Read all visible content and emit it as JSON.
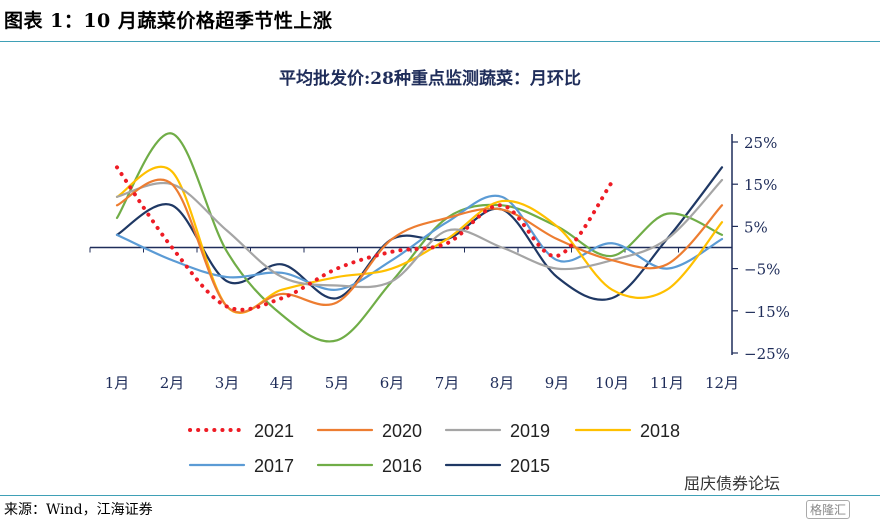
{
  "header": {
    "title": "图表 1：10 月蔬菜价格超季节性上涨"
  },
  "footer": {
    "source": "来源：Wind，江海证券"
  },
  "watermark": {
    "text": "屈庆债券论坛",
    "logo_text": "格隆汇"
  },
  "colors": {
    "rule": "#3fa0b6",
    "axis": "#1f2d5a"
  },
  "chart_data": {
    "type": "line",
    "title": "平均批发价:28种重点监测蔬菜：月环比",
    "categories": [
      "1月",
      "2月",
      "3月",
      "4月",
      "5月",
      "6月",
      "7月",
      "8月",
      "9月",
      "10月",
      "11月",
      "12月"
    ],
    "y_ticks": [
      "25%",
      "15%",
      "5%",
      "−5%",
      "−15%",
      "−25%"
    ],
    "y_tick_values": [
      25,
      15,
      5,
      -5,
      -15,
      -25
    ],
    "ylim": [
      -25,
      25
    ],
    "grid": false,
    "legend_position": "bottom",
    "series": [
      {
        "name": "2021",
        "color": "#ee1c25",
        "dotted": true,
        "values": [
          19,
          0,
          -14,
          -12,
          -5,
          -1,
          1,
          10,
          -2,
          15.5,
          null,
          null
        ]
      },
      {
        "name": "2020",
        "color": "#ed7d31",
        "dotted": false,
        "values": [
          10,
          15,
          -14,
          -11,
          -13,
          2,
          7,
          9,
          2,
          -3,
          -4,
          10
        ]
      },
      {
        "name": "2019",
        "color": "#a5a5a5",
        "dotted": false,
        "values": [
          12,
          15,
          4,
          -7,
          -9,
          -8,
          4,
          0,
          -5,
          -3,
          2,
          16
        ]
      },
      {
        "name": "2018",
        "color": "#ffc000",
        "dotted": false,
        "values": [
          12,
          18,
          -14,
          -10,
          -7,
          -5,
          2,
          11,
          5,
          -10,
          -10,
          6
        ]
      },
      {
        "name": "2017",
        "color": "#5b9bd5",
        "dotted": false,
        "values": [
          3,
          -3,
          -7,
          -6,
          -10,
          -3,
          6,
          12,
          -3,
          1,
          -5,
          2
        ]
      },
      {
        "name": "2016",
        "color": "#70ad47",
        "dotted": false,
        "values": [
          7,
          27,
          -1,
          -16,
          -22,
          -8,
          7,
          10,
          5,
          -2,
          8,
          3
        ]
      },
      {
        "name": "2015",
        "color": "#1f3864",
        "dotted": false,
        "values": [
          3,
          10,
          -8,
          -4,
          -12,
          2,
          2,
          9,
          -7,
          -12,
          2,
          19
        ]
      }
    ]
  }
}
